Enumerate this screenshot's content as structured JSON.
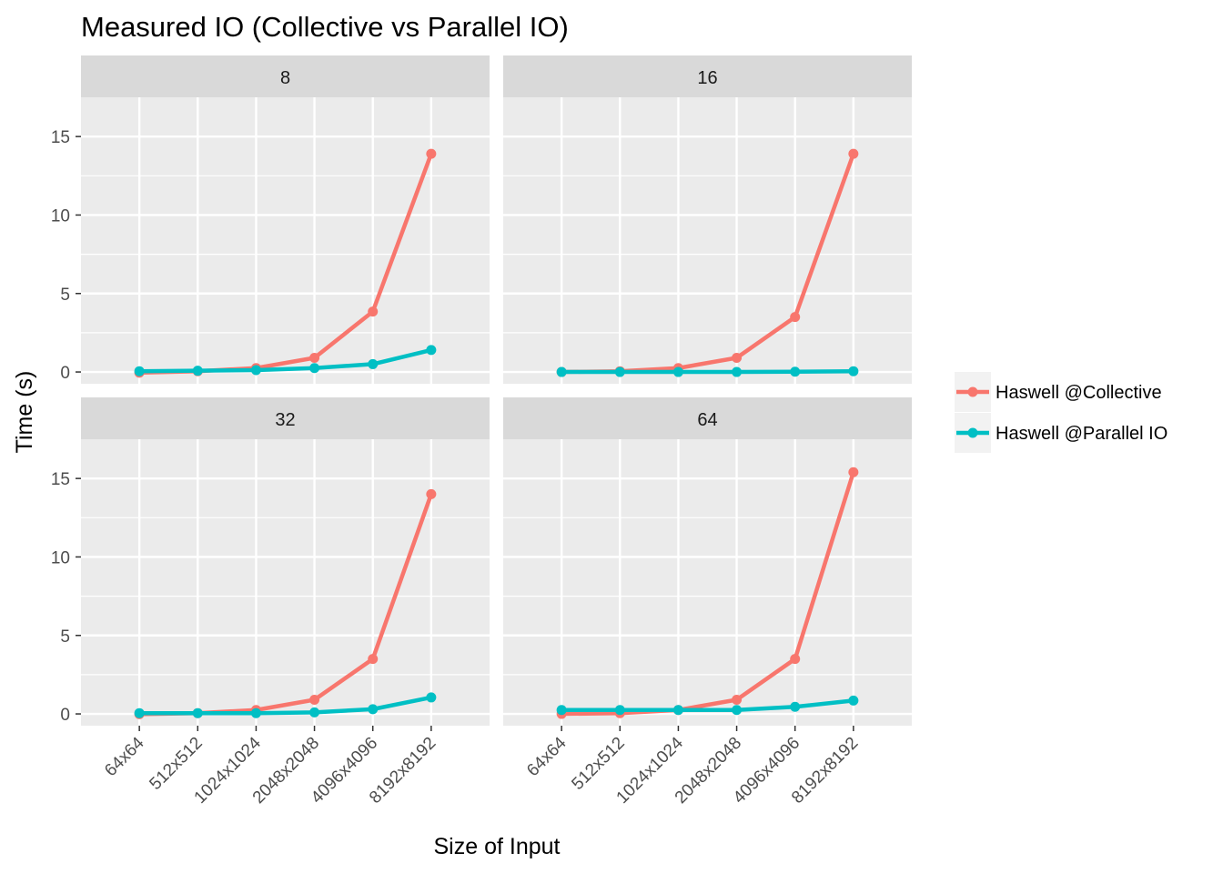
{
  "chart_data": {
    "type": "line",
    "title": "Measured IO (Collective vs Parallel IO)",
    "xlabel": "Size of Input",
    "ylabel": "Time (s)",
    "categories": [
      "64x64",
      "512x512",
      "1024x1024",
      "2048x2048",
      "4096x4096",
      "8192x8192"
    ],
    "yticks": [
      0,
      5,
      10,
      15
    ],
    "ylim": [
      -0.75,
      17.5
    ],
    "grid": true,
    "legend_position": "right",
    "series_meta": [
      {
        "name": "Haswell @Collective",
        "color": "#F8766D"
      },
      {
        "name": "Haswell @Parallel IO",
        "color": "#00BFC4"
      }
    ],
    "facets": [
      {
        "label": "8",
        "series": [
          {
            "name": "Haswell @Collective",
            "values": [
              -0.05,
              0.05,
              0.25,
              0.9,
              3.85,
              13.9
            ]
          },
          {
            "name": "Haswell @Parallel IO",
            "values": [
              0.05,
              0.08,
              0.12,
              0.25,
              0.5,
              1.4
            ]
          }
        ]
      },
      {
        "label": "16",
        "series": [
          {
            "name": "Haswell @Collective",
            "values": [
              0.0,
              0.05,
              0.25,
              0.9,
              3.5,
              13.9
            ]
          },
          {
            "name": "Haswell @Parallel IO",
            "values": [
              0.0,
              0.0,
              0.0,
              0.0,
              0.02,
              0.05
            ]
          }
        ]
      },
      {
        "label": "32",
        "series": [
          {
            "name": "Haswell @Collective",
            "values": [
              -0.02,
              0.05,
              0.25,
              0.9,
              3.5,
              14.0
            ]
          },
          {
            "name": "Haswell @Parallel IO",
            "values": [
              0.05,
              0.05,
              0.05,
              0.1,
              0.3,
              1.05
            ]
          }
        ]
      },
      {
        "label": "64",
        "series": [
          {
            "name": "Haswell @Collective",
            "values": [
              0.0,
              0.05,
              0.25,
              0.9,
              3.5,
              15.4
            ]
          },
          {
            "name": "Haswell @Parallel IO",
            "values": [
              0.25,
              0.25,
              0.25,
              0.25,
              0.45,
              0.85
            ]
          }
        ]
      }
    ]
  }
}
